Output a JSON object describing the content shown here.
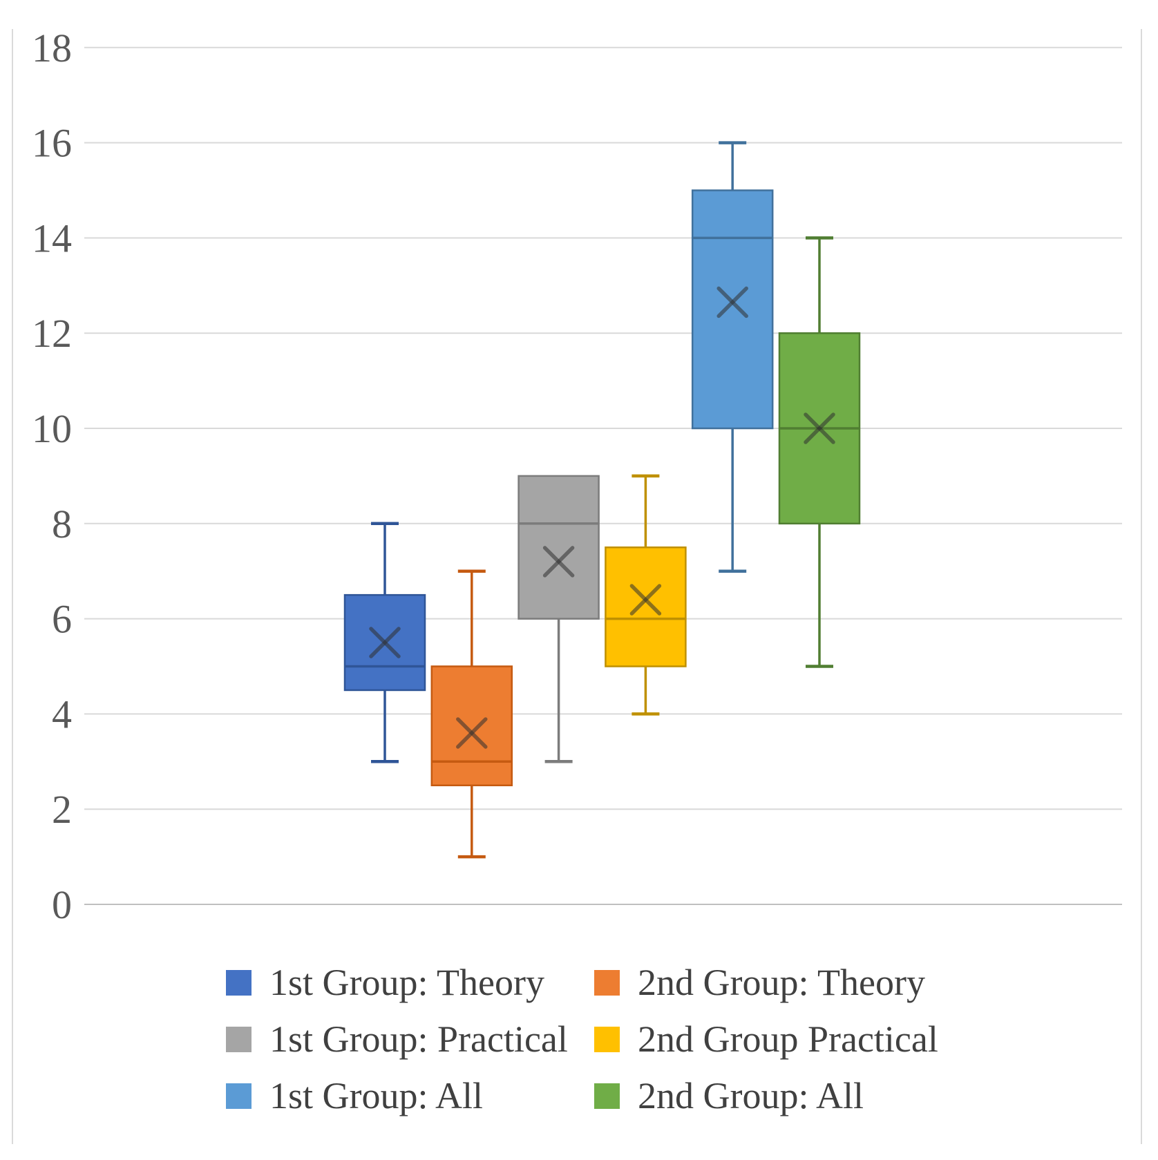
{
  "chart_data": {
    "type": "box",
    "title": "",
    "xlabel": "",
    "ylabel": "",
    "grid": true,
    "legend_position": "bottom",
    "legend_columns": 2,
    "y_axis": {
      "min": 0,
      "max": 18,
      "tick_step": 2,
      "ticks": [
        0,
        2,
        4,
        6,
        8,
        10,
        12,
        14,
        16,
        18
      ]
    },
    "colors": {
      "gridline": "#d9d9d9",
      "axis_line": "#bfbfbf",
      "tick_label": "#595959",
      "legend_text": "#404040",
      "mean_marker": "#303030"
    },
    "series": [
      {
        "name": "1st Group: Theory",
        "fill": "#4472c4",
        "stroke": "#2f5597",
        "min": 3,
        "q1": 4.5,
        "median": 5,
        "mean": 5.5,
        "q3": 6.5,
        "max": 8
      },
      {
        "name": "2nd Group: Theory",
        "fill": "#ed7d31",
        "stroke": "#c55a11",
        "min": 1,
        "q1": 2.5,
        "median": 3,
        "mean": 3.6,
        "q3": 5,
        "max": 7
      },
      {
        "name": "1st Group: Practical",
        "fill": "#a5a5a5",
        "stroke": "#7c7c7c",
        "min": 3,
        "q1": 6,
        "median": 8,
        "mean": 7.2,
        "q3": 9,
        "max": 9
      },
      {
        "name": "2nd Group Practical",
        "fill": "#ffc000",
        "stroke": "#bf9000",
        "min": 4,
        "q1": 5,
        "median": 6,
        "mean": 6.4,
        "q3": 7.5,
        "max": 9
      },
      {
        "name": "1st Group: All",
        "fill": "#5b9bd5",
        "stroke": "#41719c",
        "min": 7,
        "q1": 10,
        "median": 14,
        "mean": 12.65,
        "q3": 15,
        "max": 16
      },
      {
        "name": "2nd Group: All",
        "fill": "#70ad47",
        "stroke": "#507e32",
        "min": 5,
        "q1": 8,
        "median": 10,
        "mean": 10,
        "q3": 12,
        "max": 14
      }
    ]
  }
}
